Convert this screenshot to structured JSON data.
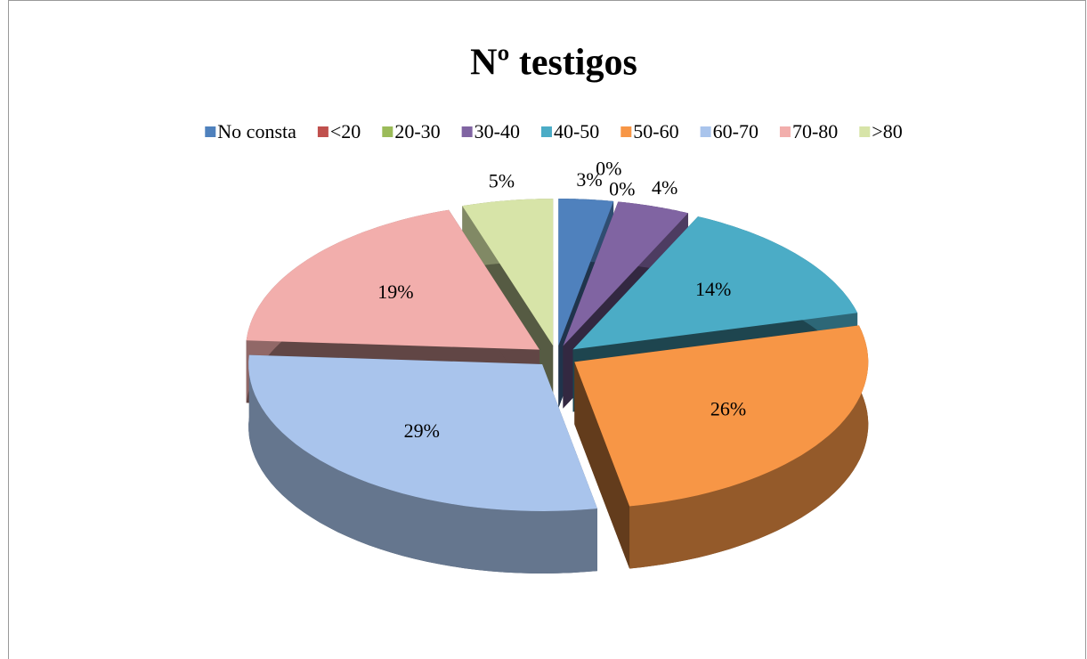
{
  "chart_data": {
    "type": "pie",
    "title": "Nº testigos",
    "categories": [
      "No consta",
      "<20",
      "20-30",
      "30-40",
      "40-50",
      "50-60",
      "60-70",
      "70-80",
      ">80"
    ],
    "values": [
      3,
      0,
      0,
      4,
      14,
      26,
      29,
      19,
      5
    ],
    "value_labels": [
      "3%",
      "0%",
      "0%",
      "4%",
      "14%",
      "26%",
      "29%",
      "19%",
      "5%"
    ],
    "colors": [
      "#4f81bd",
      "#c0504d",
      "#9bbb59",
      "#8064a2",
      "#4bacc6",
      "#f79646",
      "#a9c4ec",
      "#f2aeac",
      "#d7e4a8"
    ],
    "legend": "top"
  }
}
